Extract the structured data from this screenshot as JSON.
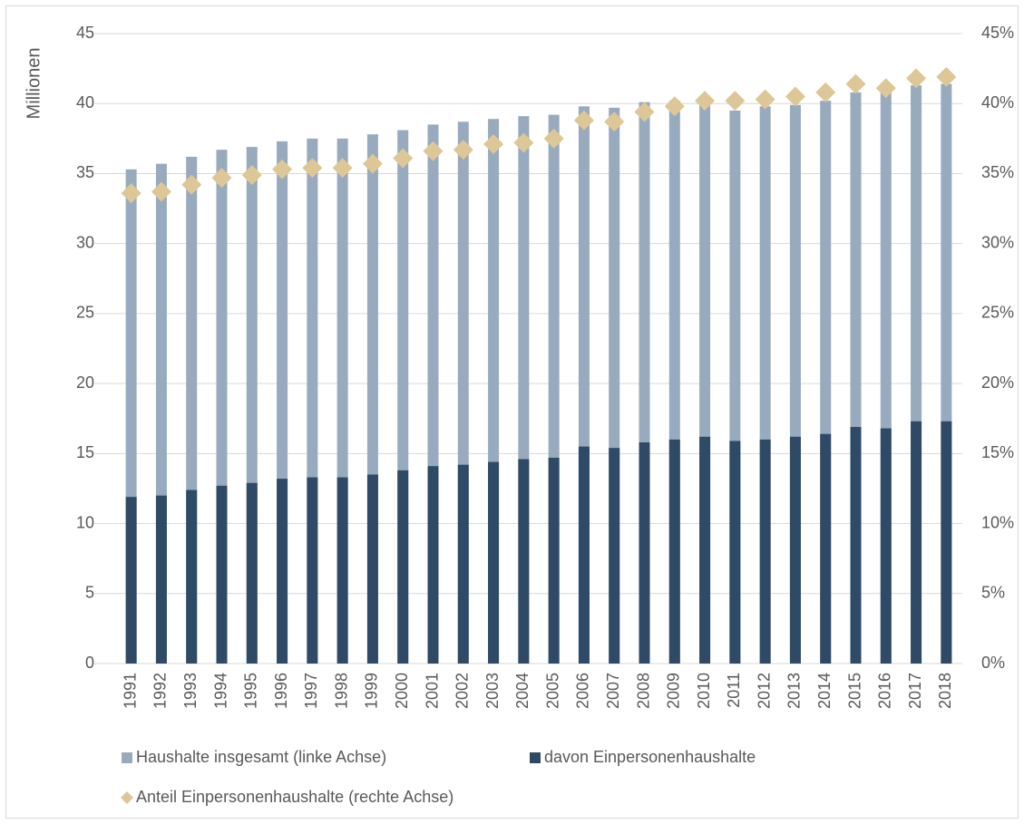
{
  "chart_data": {
    "type": "bar",
    "barmode": "overlay",
    "y_label": "Millionen",
    "categories": [
      "1991",
      "1992",
      "1993",
      "1994",
      "1995",
      "1996",
      "1997",
      "1998",
      "1999",
      "2000",
      "2001",
      "2002",
      "2003",
      "2004",
      "2005",
      "2006",
      "2007",
      "2008",
      "2009",
      "2010",
      "2011",
      "2012",
      "2013",
      "2014",
      "2015",
      "2016",
      "2017",
      "2018"
    ],
    "series": [
      {
        "name": "Haushalte insgesamt (linke Achse)",
        "type": "bar",
        "color": "#98aabd",
        "axis": "y",
        "values": [
          35.3,
          35.7,
          36.2,
          36.7,
          36.9,
          37.3,
          37.5,
          37.5,
          37.8,
          38.1,
          38.5,
          38.7,
          38.9,
          39.1,
          39.2,
          39.8,
          39.7,
          40.1,
          40.2,
          40.3,
          39.5,
          39.8,
          39.9,
          40.2,
          40.8,
          41.0,
          41.3,
          41.4
        ]
      },
      {
        "name": "davon Einpersonenhaushalte",
        "type": "bar",
        "color": "#2f4a66",
        "axis": "y",
        "values": [
          11.9,
          12.0,
          12.4,
          12.7,
          12.9,
          13.2,
          13.3,
          13.3,
          13.5,
          13.8,
          14.1,
          14.2,
          14.4,
          14.6,
          14.7,
          15.5,
          15.4,
          15.8,
          16.0,
          16.2,
          15.9,
          16.0,
          16.2,
          16.4,
          16.9,
          16.8,
          17.3,
          17.3
        ]
      },
      {
        "name": "Anteil Einpersonenhaushalte (rechte Achse)",
        "type": "scatter",
        "marker": "diamond",
        "color": "#dec796",
        "axis": "y2",
        "values": [
          33.6,
          33.7,
          34.2,
          34.7,
          34.9,
          35.3,
          35.4,
          35.4,
          35.7,
          36.1,
          36.6,
          36.7,
          37.1,
          37.2,
          37.5,
          38.8,
          38.7,
          39.4,
          39.8,
          40.2,
          40.2,
          40.3,
          40.5,
          40.8,
          41.4,
          41.1,
          41.8,
          41.9
        ]
      }
    ],
    "ylim": [
      0,
      45
    ],
    "yticks": [
      0,
      5,
      10,
      15,
      20,
      25,
      30,
      35,
      40,
      45
    ],
    "y2lim": [
      0,
      45
    ],
    "y2ticks": [
      {
        "value": 0,
        "label": "0%"
      },
      {
        "value": 5,
        "label": "5%"
      },
      {
        "value": 10,
        "label": "10%"
      },
      {
        "value": 15,
        "label": "15%"
      },
      {
        "value": 20,
        "label": "20%"
      },
      {
        "value": 25,
        "label": "25%"
      },
      {
        "value": 30,
        "label": "30%"
      },
      {
        "value": 35,
        "label": "35%"
      },
      {
        "value": 40,
        "label": "40%"
      },
      {
        "value": 45,
        "label": "45%"
      }
    ],
    "grid": true
  }
}
